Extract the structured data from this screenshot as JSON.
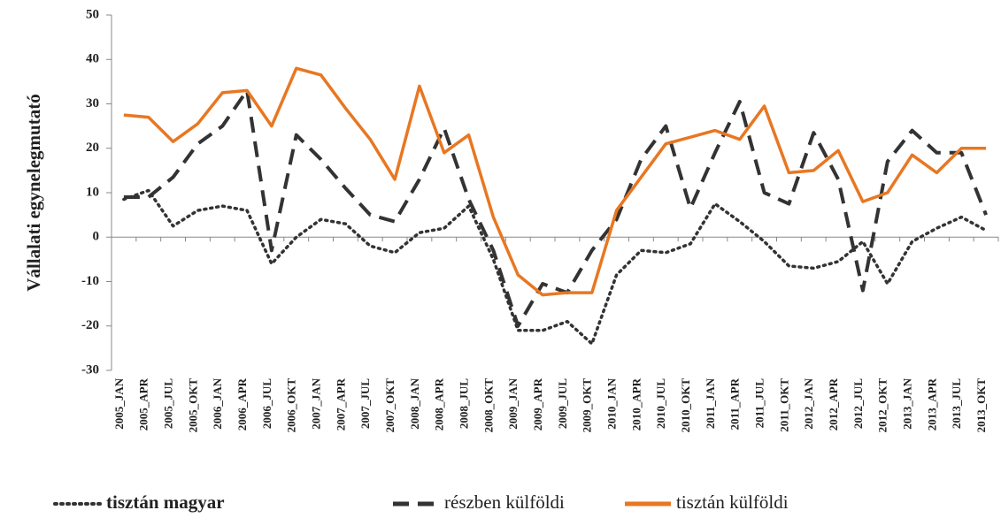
{
  "chart_data": {
    "type": "line",
    "y_label": "Vállalati egynelegmutató",
    "categories": [
      "2005_JAN",
      "2005_APR",
      "2005_JUL",
      "2005_OKT",
      "2006_JAN",
      "2006_APR",
      "2006_JUL",
      "2006_OKT",
      "2007_JAN",
      "2007_APR",
      "2007_JUL",
      "2007_OKT",
      "2008_JAN",
      "2008_APR",
      "2008_JUL",
      "2008_OKT",
      "2009_JAN",
      "2009_APR",
      "2009_JUL",
      "2009_OKT",
      "2010_JAN",
      "2010_APR",
      "2010_JUL",
      "2010_OKT",
      "2011_JAN",
      "2011_APR",
      "2011_JUL",
      "2011_OKT",
      "2012_JAN",
      "2012_APR",
      "2012_JUL",
      "2012_OKT",
      "2013_JAN",
      "2013_APR",
      "2013_JUL",
      "2013_OKT"
    ],
    "series": [
      {
        "name": "tisztán magyar",
        "color": "#333333",
        "line_style": "dotted",
        "values": [
          8.5,
          10.5,
          2.5,
          6,
          7,
          6,
          -6,
          0,
          4,
          3,
          -2,
          -3.5,
          1,
          2,
          7,
          -5,
          -21,
          -21,
          -19,
          -24,
          -8.5,
          -3,
          -3.5,
          -1.5,
          7.5,
          3.5,
          -1,
          -6.5,
          -7,
          -5.5,
          -1,
          -10.5,
          -1,
          2,
          4.5,
          1.5
        ]
      },
      {
        "name": "részben külföldi",
        "color": "#333333",
        "line_style": "dashed",
        "values": [
          9,
          9,
          13.5,
          21,
          25,
          33,
          -3,
          23,
          17.5,
          11,
          5,
          3.5,
          13,
          24.5,
          8.5,
          -3,
          -20,
          -10.5,
          -12.5,
          -3,
          4,
          17.5,
          25,
          6.5,
          19,
          30.5,
          10,
          7.5,
          23.5,
          13,
          -12,
          17,
          24,
          19,
          19,
          5
        ]
      },
      {
        "name": "tisztán külföldi",
        "color": "#e87722",
        "line_style": "solid",
        "values": [
          27.5,
          27,
          21.5,
          25.5,
          32.5,
          33,
          25,
          38,
          36.5,
          29,
          22,
          13,
          34,
          19,
          23,
          4.5,
          -8.5,
          -13,
          -12.5,
          -12.5,
          6,
          13.5,
          21,
          22.5,
          24,
          22,
          29.5,
          14.5,
          15,
          19.5,
          8,
          10,
          18.5,
          14.5,
          20,
          20
        ]
      }
    ],
    "ylim": [
      -30,
      50
    ],
    "yticks": [
      -30,
      -20,
      -10,
      0,
      10,
      20,
      30,
      40,
      50
    ],
    "grid": false,
    "legend": "bottom"
  }
}
